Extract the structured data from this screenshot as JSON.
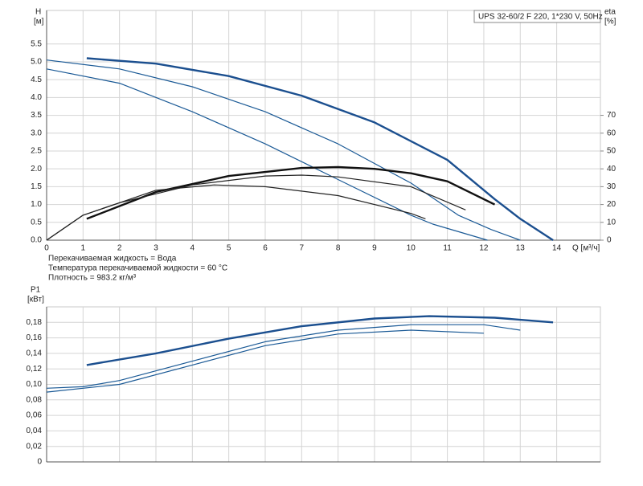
{
  "chart_data": [
    {
      "type": "line",
      "title": "UPS 32-60/2 F 220, 1*230 V, 50Hz",
      "ylabel": "H",
      "yunit": "[м]",
      "y2label": "eta",
      "y2unit": "[%]",
      "xlabel": "Q [м³/ч]",
      "annotations": [
        "Перекачиваемая жидкость = Вода",
        "Температура перекачиваемой жидкости = 60 °C",
        "Плотность = 983.2 кг/м³"
      ],
      "xlim": [
        0,
        15.2
      ],
      "xticks": [
        0,
        1,
        2,
        3,
        4,
        5,
        6,
        7,
        8,
        9,
        10,
        11,
        12,
        13,
        14
      ],
      "ylim": [
        0,
        6.44
      ],
      "yticks": [
        {
          "value": 0,
          "label": "0.0"
        },
        0.5,
        {
          "value": 1,
          "label": "1.0"
        },
        1.5,
        {
          "value": 2,
          "label": "2.0"
        },
        2.5,
        {
          "value": 3,
          "label": "3.0"
        },
        3.5,
        {
          "value": 4,
          "label": "4.0"
        },
        4.5,
        {
          "value": 5,
          "label": "5.0"
        },
        5.5
      ],
      "y2lim": [
        0,
        128.8
      ],
      "y2ticks": [
        0,
        10,
        20,
        30,
        40,
        50,
        60,
        70
      ],
      "grid": true,
      "series": [
        {
          "color": "#1b4f8f",
          "x": [
            1.1,
            3,
            5,
            7,
            9,
            11,
            12.3,
            13,
            13.9
          ],
          "values": [
            5.1,
            4.95,
            4.6,
            4.05,
            3.3,
            2.25,
            1.15,
            0.6,
            0
          ]
        },
        {
          "color": "#1b5a96",
          "x": [
            0,
            2,
            4,
            6,
            8,
            10,
            11.3,
            12.2,
            13
          ],
          "values": [
            5.05,
            4.8,
            4.3,
            3.6,
            2.7,
            1.6,
            0.7,
            0.3,
            0
          ]
        },
        {
          "color": "#1b5a96",
          "x": [
            0,
            2,
            4,
            6,
            8,
            10,
            10.6,
            12.1
          ],
          "values": [
            4.8,
            4.4,
            3.6,
            2.7,
            1.7,
            0.7,
            0.45,
            0
          ]
        },
        {
          "color": "#111111",
          "axis": "y2",
          "x": [
            1.1,
            3,
            5,
            7,
            8,
            9,
            10,
            11,
            12.3
          ],
          "values": [
            12,
            27,
            36,
            40.5,
            41,
            40,
            37.5,
            33,
            20
          ]
        },
        {
          "color": "#222222",
          "axis": "y2",
          "x": [
            0,
            1,
            2,
            4,
            6,
            7,
            8,
            10,
            11.5
          ],
          "values": [
            0,
            14,
            21,
            31,
            36,
            36.5,
            35.5,
            30,
            17
          ]
        },
        {
          "color": "#222222",
          "axis": "y2",
          "x": [
            0,
            1,
            2,
            3,
            4.6,
            6,
            8,
            10,
            10.4
          ],
          "values": [
            0,
            14,
            21,
            28,
            31,
            30,
            25,
            15,
            12
          ]
        }
      ]
    },
    {
      "type": "line",
      "ylabel": "P1",
      "yunit": "[кВт]",
      "xlim": [
        0,
        15.2
      ],
      "xticks": [
        0,
        1,
        2,
        3,
        4,
        5,
        6,
        7,
        8,
        9,
        10,
        11,
        12,
        13,
        14
      ],
      "show_xtick_labels": false,
      "ylim": [
        0,
        0.2
      ],
      "yticks": [
        0,
        {
          "value": 0.02,
          "label": "0,02"
        },
        {
          "value": 0.04,
          "label": "0,04"
        },
        {
          "value": 0.06,
          "label": "0,06"
        },
        {
          "value": 0.08,
          "label": "0,08"
        },
        {
          "value": 0.1,
          "label": "0,10"
        },
        {
          "value": 0.12,
          "label": "0,12"
        },
        {
          "value": 0.14,
          "label": "0,14"
        },
        {
          "value": 0.16,
          "label": "0,16"
        },
        {
          "value": 0.18,
          "label": "0,18"
        }
      ],
      "grid": true,
      "series": [
        {
          "color": "#1b4f8f",
          "x": [
            1.1,
            3,
            5,
            7,
            9,
            10.5,
            12.3,
            13.9
          ],
          "values": [
            0.125,
            0.14,
            0.159,
            0.175,
            0.185,
            0.188,
            0.186,
            0.18
          ]
        },
        {
          "color": "#1b5a96",
          "x": [
            0,
            1,
            2,
            4,
            6,
            8,
            10,
            12,
            13
          ],
          "values": [
            0.095,
            0.097,
            0.105,
            0.13,
            0.155,
            0.17,
            0.177,
            0.177,
            0.17
          ]
        },
        {
          "color": "#1b5a96",
          "x": [
            0,
            2,
            4,
            6,
            8,
            10,
            12
          ],
          "values": [
            0.09,
            0.1,
            0.125,
            0.15,
            0.165,
            0.17,
            0.166
          ]
        }
      ]
    }
  ]
}
